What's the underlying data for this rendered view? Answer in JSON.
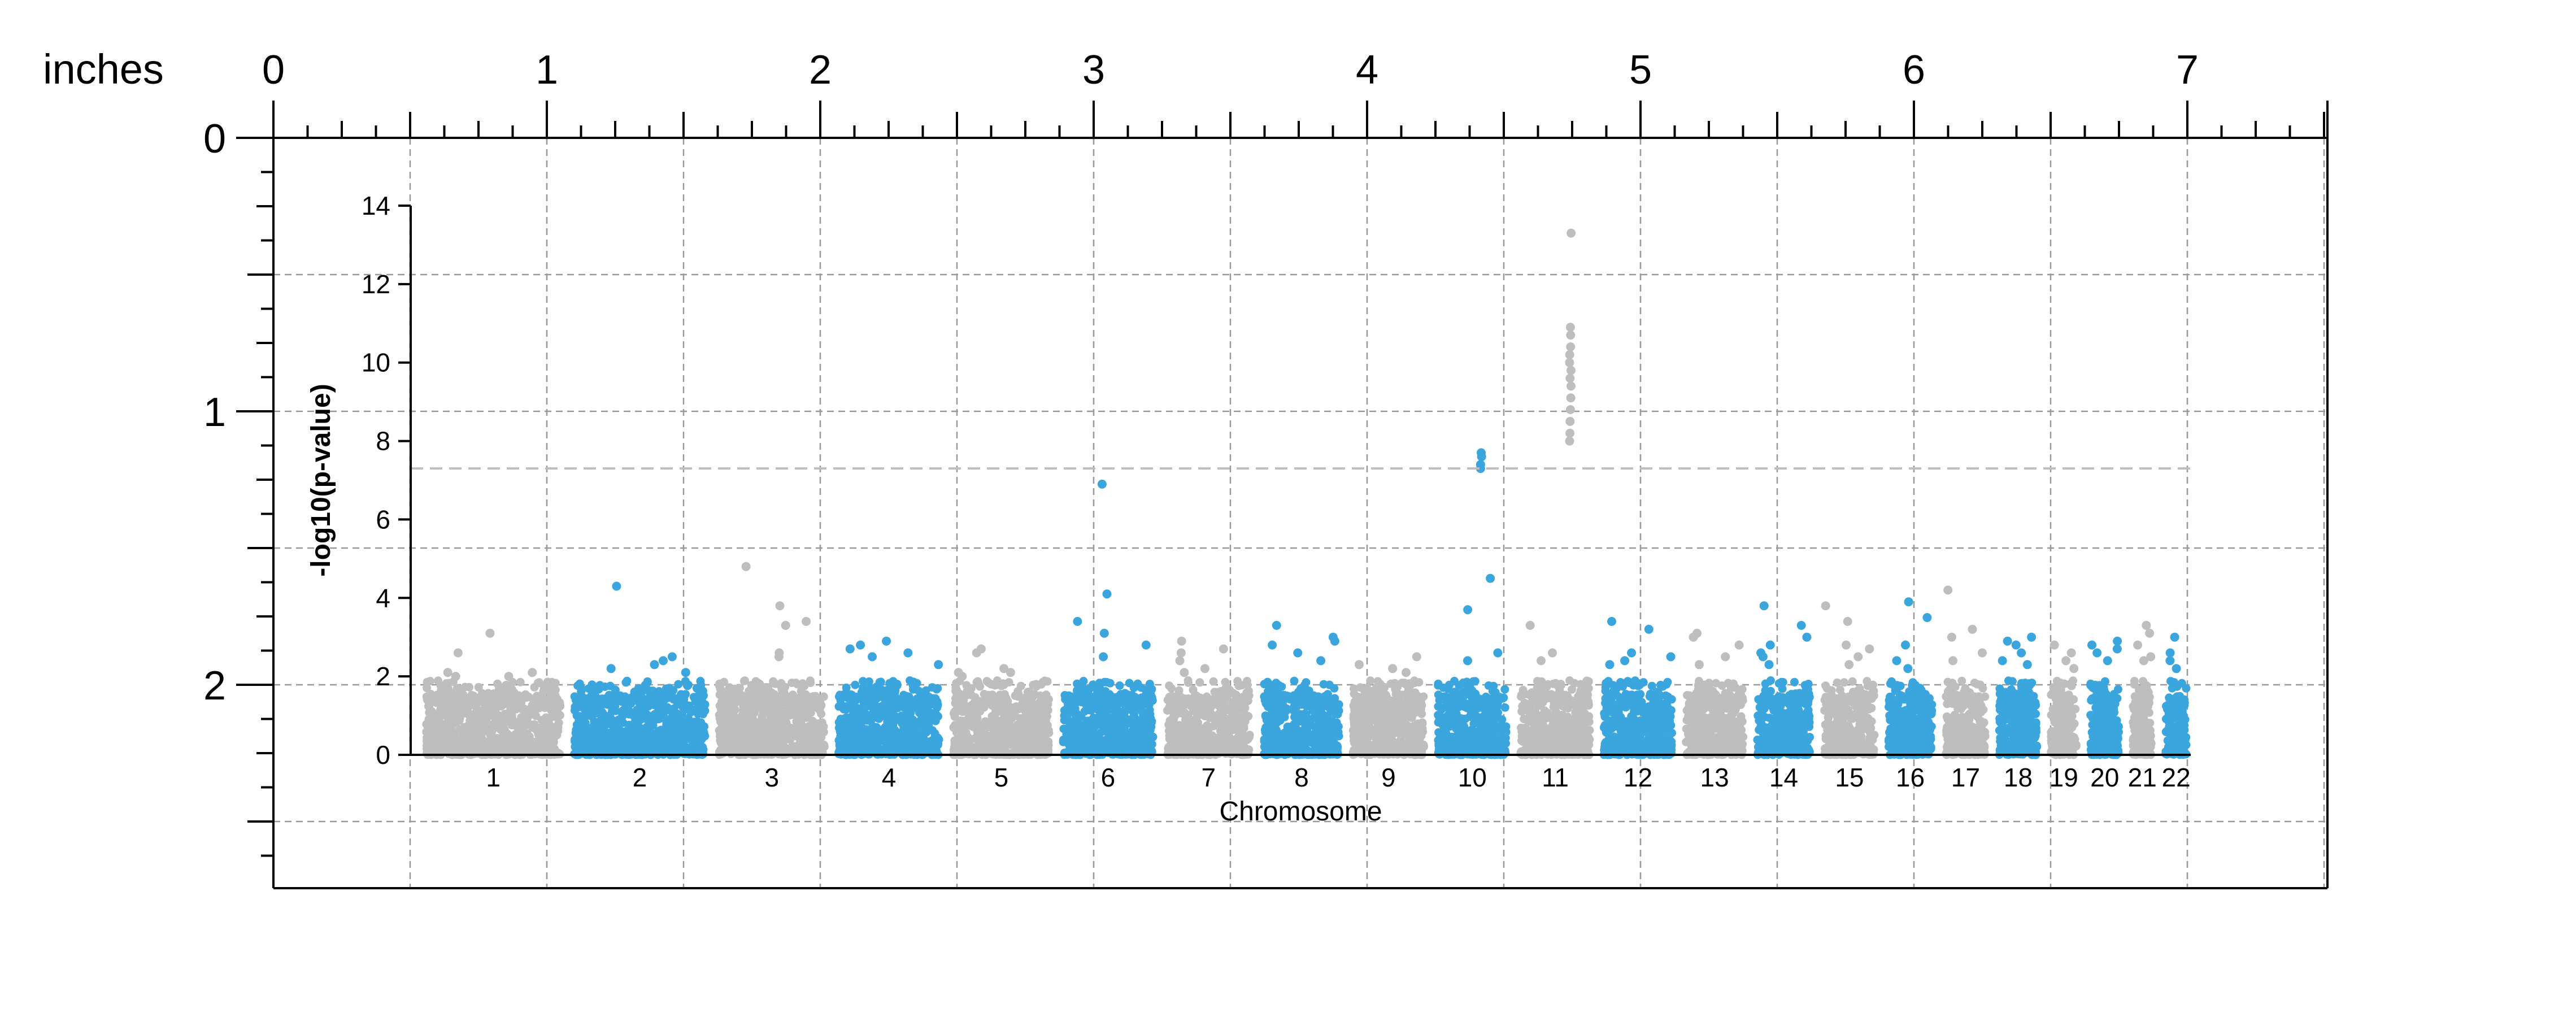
{
  "ruler": {
    "units_label": "inches",
    "top_labels": [
      "0",
      "1",
      "2",
      "3",
      "4",
      "5",
      "6",
      "7"
    ],
    "left_labels": [
      "0",
      "1",
      "2"
    ]
  },
  "chart_data": {
    "type": "scatter",
    "title": "",
    "xlabel": "Chromosome",
    "ylabel": "-log10(p-value)",
    "ylim": [
      0,
      14
    ],
    "yticks": [
      0,
      2,
      4,
      6,
      8,
      10,
      12,
      14
    ],
    "grid": true,
    "significance_threshold": 7.3,
    "colors": {
      "odd_chromosome": "#bebebe",
      "even_chromosome": "#3aa6dd",
      "threshold_line": "#bebebe",
      "grid": "#999999"
    },
    "categories": [
      "1",
      "2",
      "3",
      "4",
      "5",
      "6",
      "7",
      "8",
      "9",
      "10",
      "11",
      "12",
      "13",
      "14",
      "15",
      "16",
      "17",
      "18",
      "19",
      "20",
      "21",
      "22"
    ],
    "chromosomes": [
      {
        "name": "1",
        "max": 3.1,
        "top_hits": [
          3.1,
          2.6,
          2.1,
          2.1,
          2.0,
          2.0
        ]
      },
      {
        "name": "2",
        "max": 4.3,
        "top_hits": [
          4.3,
          2.5,
          2.4,
          2.3,
          2.2,
          2.1
        ]
      },
      {
        "name": "3",
        "max": 4.8,
        "top_hits": [
          4.8,
          3.8,
          3.4,
          3.3,
          2.6,
          2.5
        ]
      },
      {
        "name": "4",
        "max": 2.9,
        "top_hits": [
          2.9,
          2.8,
          2.7,
          2.6,
          2.5,
          2.3
        ]
      },
      {
        "name": "5",
        "max": 2.7,
        "top_hits": [
          2.7,
          2.6,
          2.2,
          2.1,
          2.1,
          2.0
        ]
      },
      {
        "name": "6",
        "max": 6.9,
        "top_hits": [
          6.9,
          4.1,
          3.4,
          3.1,
          2.8,
          2.5
        ]
      },
      {
        "name": "7",
        "max": 2.9,
        "top_hits": [
          2.9,
          2.7,
          2.6,
          2.4,
          2.2,
          2.1
        ]
      },
      {
        "name": "8",
        "max": 3.3,
        "top_hits": [
          3.3,
          3.0,
          2.9,
          2.8,
          2.6,
          2.4
        ]
      },
      {
        "name": "9",
        "max": 2.5,
        "top_hits": [
          2.5,
          2.3,
          2.2,
          2.1
        ]
      },
      {
        "name": "10",
        "max": 7.7,
        "top_hits": [
          7.7,
          7.6,
          7.4,
          7.3,
          4.5,
          3.7,
          2.6,
          2.4
        ]
      },
      {
        "name": "11",
        "max": 13.3,
        "top_hits": [
          13.3,
          10.9,
          10.7,
          10.4,
          10.2,
          10.0,
          9.8,
          9.6,
          9.4,
          9.1,
          8.8,
          8.5,
          8.2,
          8.0,
          3.3,
          2.6,
          2.4
        ]
      },
      {
        "name": "12",
        "max": 3.4,
        "top_hits": [
          3.4,
          3.2,
          2.6,
          2.5,
          2.4,
          2.3
        ]
      },
      {
        "name": "13",
        "max": 3.1,
        "top_hits": [
          3.1,
          3.0,
          2.8,
          2.5,
          2.3
        ]
      },
      {
        "name": "14",
        "max": 3.8,
        "top_hits": [
          3.8,
          3.3,
          3.0,
          2.8,
          2.6,
          2.5,
          2.3
        ]
      },
      {
        "name": "15",
        "max": 3.8,
        "top_hits": [
          3.8,
          3.4,
          2.8,
          2.7,
          2.5,
          2.3
        ]
      },
      {
        "name": "16",
        "max": 3.9,
        "top_hits": [
          3.9,
          3.5,
          2.8,
          2.4,
          2.2
        ]
      },
      {
        "name": "17",
        "max": 4.2,
        "top_hits": [
          4.2,
          3.2,
          3.0,
          2.6,
          2.4
        ]
      },
      {
        "name": "18",
        "max": 3.0,
        "top_hits": [
          3.0,
          2.9,
          2.8,
          2.6,
          2.4,
          2.3
        ]
      },
      {
        "name": "19",
        "max": 2.8,
        "top_hits": [
          2.8,
          2.6,
          2.4,
          2.2
        ]
      },
      {
        "name": "20",
        "max": 2.9,
        "top_hits": [
          2.9,
          2.8,
          2.7,
          2.6,
          2.4
        ]
      },
      {
        "name": "21",
        "max": 3.3,
        "top_hits": [
          3.3,
          3.1,
          2.8,
          2.5,
          2.4
        ]
      },
      {
        "name": "22",
        "max": 3.0,
        "top_hits": [
          3.0,
          2.6,
          2.4,
          2.2
        ]
      }
    ]
  }
}
